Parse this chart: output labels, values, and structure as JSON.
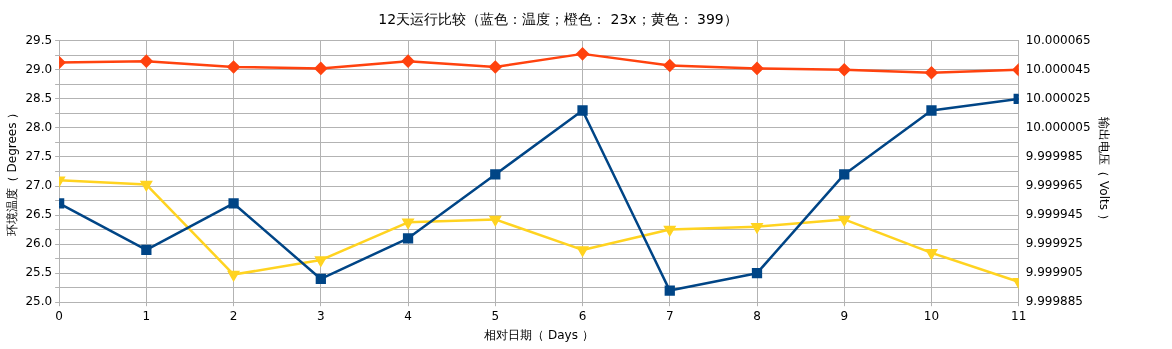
{
  "chart_data": {
    "type": "line",
    "title": "12天运行比较（蓝色：温度；橙色： 23x；黄色： 399）",
    "xlabel": "相对日期（ Days ）",
    "ylabel": "环境温度（ Degrees ）",
    "y2label": "输出电压（ Volts ）",
    "x": [
      0,
      1,
      2,
      3,
      4,
      5,
      6,
      7,
      8,
      9,
      10,
      11
    ],
    "xlim": [
      0,
      11
    ],
    "xticks": [
      0,
      1,
      2,
      3,
      4,
      5,
      6,
      7,
      8,
      9,
      10,
      11
    ],
    "ylim": [
      25,
      29.5
    ],
    "yticks": [
      {
        "value": 25,
        "label": "25.0"
      },
      {
        "value": 25.25,
        "label": null
      },
      {
        "value": 25.5,
        "label": "25.5"
      },
      {
        "value": 25.75,
        "label": null
      },
      {
        "value": 26,
        "label": "26.0"
      },
      {
        "value": 26.25,
        "label": null
      },
      {
        "value": 26.5,
        "label": "26.5"
      },
      {
        "value": 26.75,
        "label": null
      },
      {
        "value": 27,
        "label": "27.0"
      },
      {
        "value": 27.25,
        "label": null
      },
      {
        "value": 27.5,
        "label": "27.5"
      },
      {
        "value": 27.75,
        "label": null
      },
      {
        "value": 28,
        "label": "28.0"
      },
      {
        "value": 28.25,
        "label": null
      },
      {
        "value": 28.5,
        "label": "28.5"
      },
      {
        "value": 28.75,
        "label": null
      },
      {
        "value": 29,
        "label": "29.0"
      },
      {
        "value": 29.25,
        "label": null
      },
      {
        "value": 29.5,
        "label": "29.5"
      }
    ],
    "y2lim": [
      9.999885,
      10.000065
    ],
    "y2ticks": [
      9.999885,
      9.999905,
      9.999925,
      9.999945,
      9.999965,
      9.999985,
      10.000005,
      10.000025,
      10.000045,
      10.000065
    ],
    "grid": true,
    "legend": false,
    "line_style": "solid",
    "series": [
      {
        "color": "#004586",
        "marker": "square",
        "values": [
          26.7,
          25.9,
          26.7,
          25.4,
          26.1,
          27.2,
          28.3,
          25.2,
          25.5,
          27.2,
          28.3,
          28.5
        ]
      },
      {
        "color": "#ff420e",
        "marker": "diamond",
        "axis": "y2",
        "values": [
          10.00005,
          10.000051,
          10.000047,
          10.000046,
          10.000051,
          10.000047,
          10.000056,
          10.000048,
          10.000046,
          10.000045,
          10.000043,
          10.000045
        ]
      },
      {
        "color": "#ffd320",
        "marker": "triangle",
        "axis": "y2",
        "values": [
          9.999969,
          9.999966,
          9.999904,
          9.999914,
          9.99994,
          9.999942,
          9.999921,
          9.999935,
          9.999937,
          9.999942,
          9.999919,
          9.999899
        ]
      }
    ]
  }
}
